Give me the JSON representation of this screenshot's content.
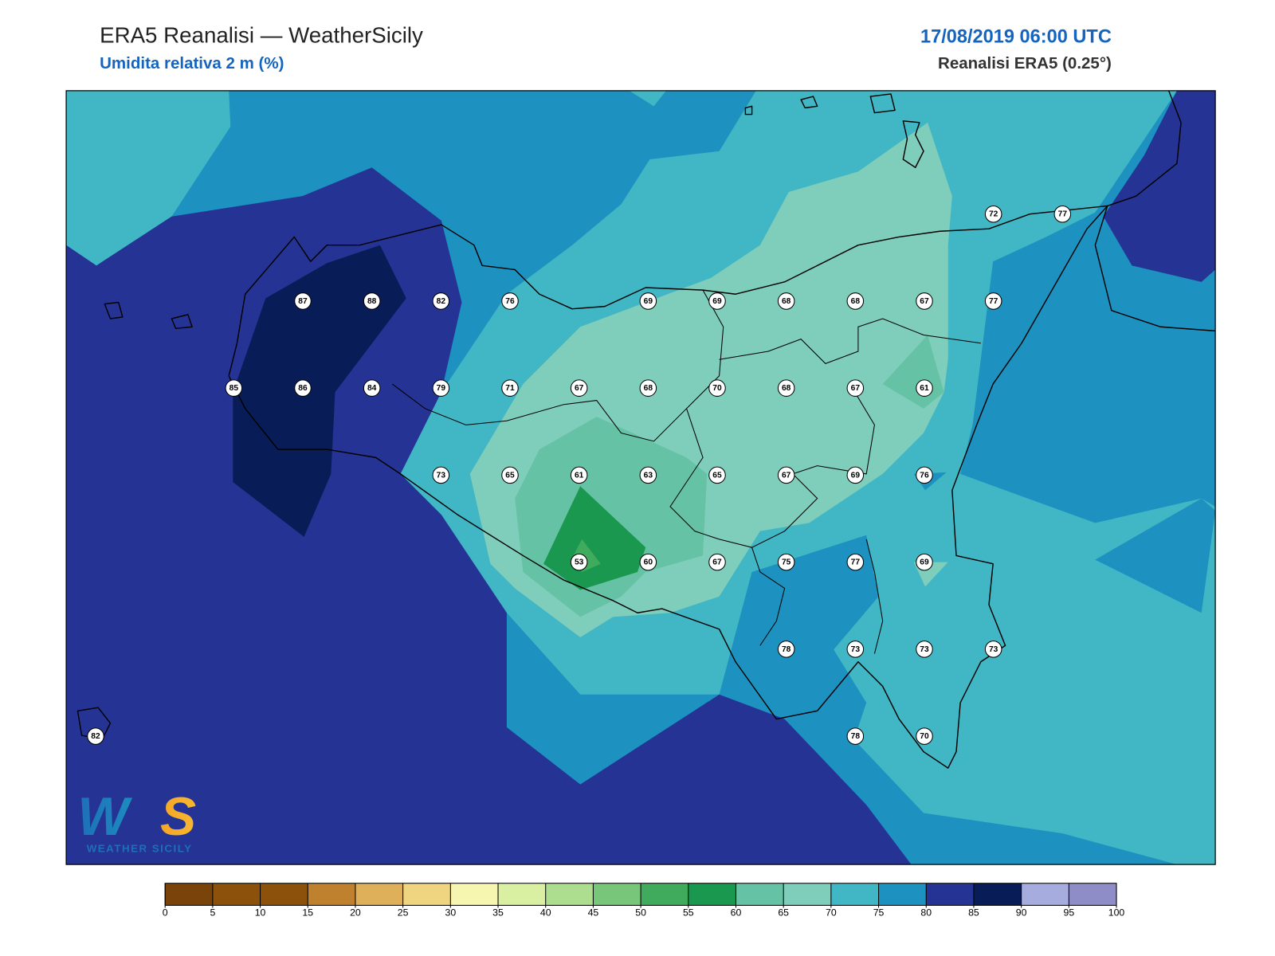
{
  "header": {
    "title": "ERA5 Reanalisi — WeatherSicily",
    "subtitle": "Umidita relativa 2 m (%)",
    "datetime": "17/08/2019 06:00 UTC",
    "source": "Reanalisi ERA5 (0.25°)"
  },
  "map": {
    "stations": [
      [
        null,
        null,
        null,
        null,
        null,
        null,
        null,
        null,
        null,
        null,
        null,
        null,
        null,
        72,
        77
      ],
      [
        null,
        null,
        null,
        87,
        88,
        82,
        76,
        null,
        69,
        69,
        68,
        68,
        67,
        77,
        null
      ],
      [
        null,
        null,
        85,
        86,
        84,
        79,
        71,
        67,
        68,
        70,
        68,
        67,
        61,
        null,
        null
      ],
      [
        null,
        null,
        null,
        null,
        null,
        73,
        65,
        61,
        63,
        65,
        67,
        69,
        76,
        null,
        null
      ],
      [
        null,
        null,
        null,
        null,
        null,
        null,
        null,
        53,
        60,
        67,
        75,
        77,
        69,
        null,
        null
      ],
      [
        null,
        null,
        null,
        null,
        null,
        null,
        null,
        null,
        null,
        null,
        78,
        73,
        73,
        73,
        null
      ],
      [
        82,
        null,
        null,
        null,
        null,
        null,
        null,
        null,
        null,
        null,
        null,
        78,
        70,
        null,
        null
      ]
    ]
  },
  "colorbar": {
    "levels": [
      0,
      5,
      10,
      15,
      20,
      25,
      30,
      35,
      40,
      45,
      50,
      55,
      60,
      65,
      70,
      75,
      80,
      85,
      90,
      95,
      100
    ],
    "colors": [
      "#7a4309",
      "#8c510a",
      "#8c510a",
      "#bf812d",
      "#dfb05a",
      "#f0d580",
      "#f6f6b0",
      "#d9f0a3",
      "#addd8e",
      "#78c679",
      "#41ab5d",
      "#1a9850",
      "#66c2a4",
      "#7fcdbb",
      "#41b6c4",
      "#1d91c0",
      "#253494",
      "#081d58",
      "#a6acdd",
      "#8e8dc8"
    ]
  },
  "logo": {
    "mark": "WS",
    "text": "WEATHER SICILY"
  }
}
